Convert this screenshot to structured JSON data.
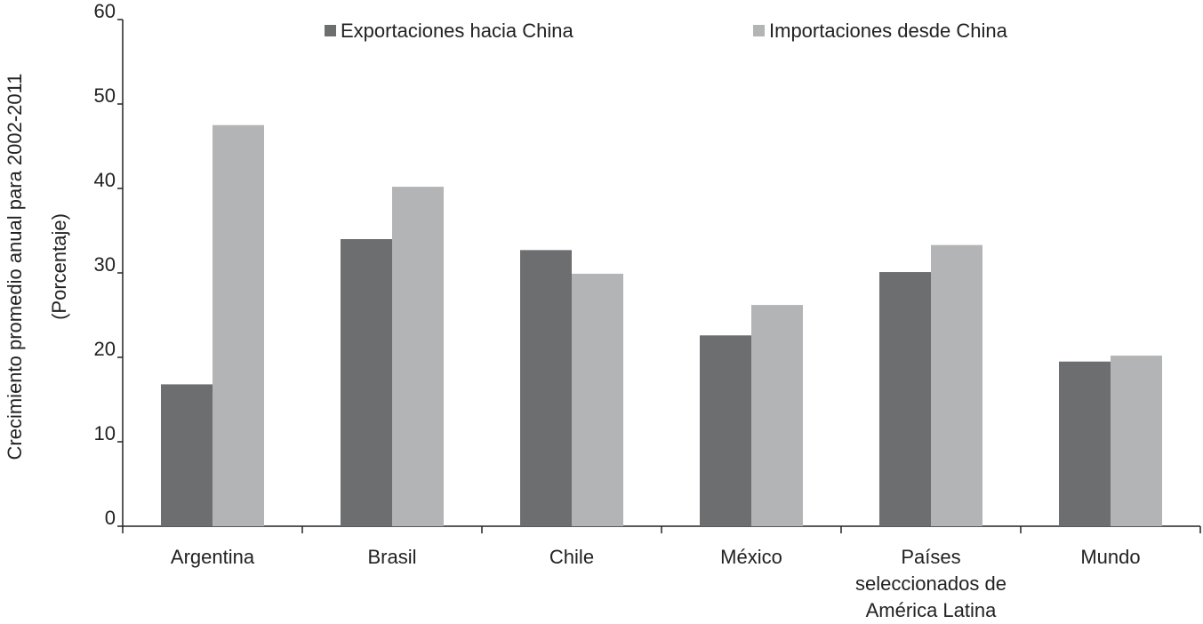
{
  "chart_data": {
    "type": "bar",
    "ylabel": [
      "Crecimiento promedio anual para 2002-2011",
      "(Porcentaje)"
    ],
    "categories": [
      "Argentina",
      "Brasil",
      "Chile",
      "México",
      "Países seleccionados de América Latina",
      "Mundo"
    ],
    "series": [
      {
        "name": "Exportaciones hacia China",
        "color": "#6d6e70",
        "values": [
          16.8,
          34.0,
          32.7,
          22.6,
          30.1,
          19.5
        ]
      },
      {
        "name": "Importaciones desde China",
        "color": "#b3b4b6",
        "values": [
          47.5,
          40.2,
          29.9,
          26.2,
          33.3,
          20.2
        ]
      }
    ],
    "ylim": [
      0,
      60
    ],
    "yticks": [
      0,
      10,
      20,
      30,
      40,
      50,
      60
    ],
    "grid": false,
    "legend": "top"
  }
}
